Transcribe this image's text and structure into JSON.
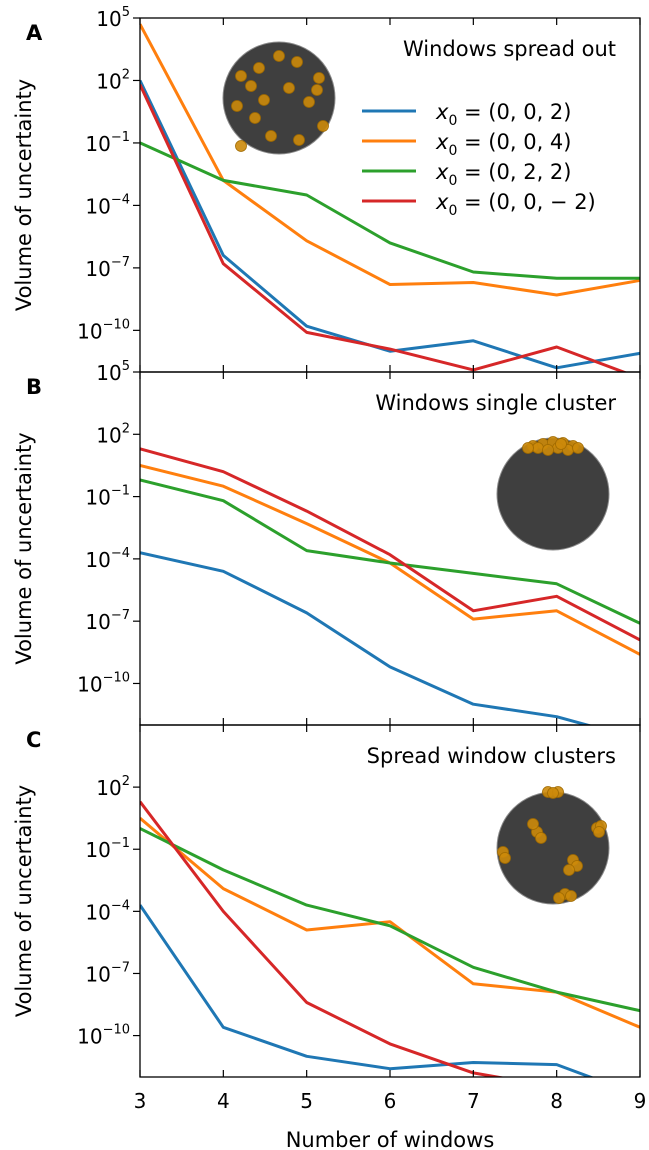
{
  "chart_data": [
    {
      "panel": "A",
      "type": "line",
      "title": "Windows spread out",
      "xlabel": "",
      "ylabel": "Volume of uncertainty",
      "yscale": "log",
      "xlim": [
        3,
        9
      ],
      "ylim_log10": [
        -12,
        5
      ],
      "x": [
        3,
        4,
        5,
        6,
        7,
        8,
        9
      ],
      "y_ticks_log10": [
        5,
        2,
        -1,
        -4,
        -7,
        -10
      ],
      "legend": {
        "position": "upper-right"
      },
      "inset": "sphere-windows-spread",
      "series": [
        {
          "name": "x_0=(0,0,2)",
          "legend_math": {
            "var": "x",
            "sub": "0",
            "rest": " = (0, 0, 2)"
          },
          "color": "#1f77b4",
          "log10_values": [
            2.0,
            -6.4,
            -9.8,
            -11.0,
            -10.5,
            -11.8,
            -11.1
          ]
        },
        {
          "name": "x_0=(0,0,4)",
          "legend_math": {
            "var": "x",
            "sub": "0",
            "rest": " = (0, 0, 4)"
          },
          "color": "#ff7f0e",
          "log10_values": [
            4.7,
            -2.8,
            -5.7,
            -7.8,
            -7.7,
            -8.3,
            -7.6
          ]
        },
        {
          "name": "x_0=(0,2,2)",
          "legend_math": {
            "var": "x",
            "sub": "0",
            "rest": " = (0, 2, 2)"
          },
          "color": "#2ca02c",
          "log10_values": [
            -1.0,
            -2.8,
            -3.5,
            -5.8,
            -7.2,
            -7.5,
            -7.5
          ]
        },
        {
          "name": "x_0=(0,0,−2)",
          "legend_math": {
            "var": "x",
            "sub": "0",
            "rest": " = (0, 0, − 2)"
          },
          "color": "#d62728",
          "log10_values": [
            1.8,
            -6.8,
            -10.1,
            -10.9,
            -11.9,
            -10.8,
            -12.3
          ]
        }
      ]
    },
    {
      "panel": "B",
      "type": "line",
      "title": "Windows single cluster",
      "xlabel": "",
      "ylabel": "Volume of uncertainty",
      "yscale": "log",
      "xlim": [
        3,
        9
      ],
      "ylim_log10": [
        -12,
        5
      ],
      "x": [
        3,
        4,
        5,
        6,
        7,
        8,
        9
      ],
      "y_ticks_log10": [
        5,
        2,
        -1,
        -4,
        -7,
        -10
      ],
      "inset": "sphere-windows-single-cluster",
      "series": [
        {
          "color": "#1f77b4",
          "log10_values": [
            -3.7,
            -4.6,
            -6.6,
            -9.2,
            -11.0,
            -11.6,
            -12.7
          ]
        },
        {
          "color": "#ff7f0e",
          "log10_values": [
            0.5,
            -0.5,
            -2.3,
            -4.2,
            -6.9,
            -6.5,
            -8.6
          ]
        },
        {
          "color": "#2ca02c",
          "log10_values": [
            -0.2,
            -1.2,
            -3.6,
            -4.2,
            -4.7,
            -5.2,
            -7.1
          ]
        },
        {
          "color": "#d62728",
          "log10_values": [
            1.3,
            0.2,
            -1.7,
            -3.8,
            -6.5,
            -5.8,
            -7.9
          ]
        }
      ]
    },
    {
      "panel": "C",
      "type": "line",
      "title": "Spread window clusters",
      "xlabel": "Number of windows",
      "ylabel": "Volume of uncertainty",
      "yscale": "log",
      "xlim": [
        3,
        9
      ],
      "ylim_log10": [
        -12,
        5
      ],
      "x": [
        3,
        4,
        5,
        6,
        7,
        8,
        9
      ],
      "x_ticks": [
        "3",
        "4",
        "5",
        "6",
        "7",
        "8",
        "9"
      ],
      "y_ticks_log10": [
        2,
        -1,
        -4,
        -7,
        -10
      ],
      "inset": "sphere-spread-window-clusters",
      "series": [
        {
          "color": "#1f77b4",
          "log10_values": [
            -3.7,
            -9.6,
            -11.0,
            -11.6,
            -11.3,
            -11.4,
            -12.9
          ]
        },
        {
          "color": "#ff7f0e",
          "log10_values": [
            0.5,
            -2.9,
            -4.9,
            -4.5,
            -7.5,
            -7.9,
            -9.6
          ]
        },
        {
          "color": "#2ca02c",
          "log10_values": [
            0.0,
            -2.0,
            -3.7,
            -4.7,
            -6.7,
            -7.9,
            -8.8
          ]
        },
        {
          "color": "#d62728",
          "log10_values": [
            1.3,
            -4.0,
            -8.4,
            -10.4,
            -11.8,
            -12.5,
            -12.2
          ]
        }
      ]
    }
  ]
}
